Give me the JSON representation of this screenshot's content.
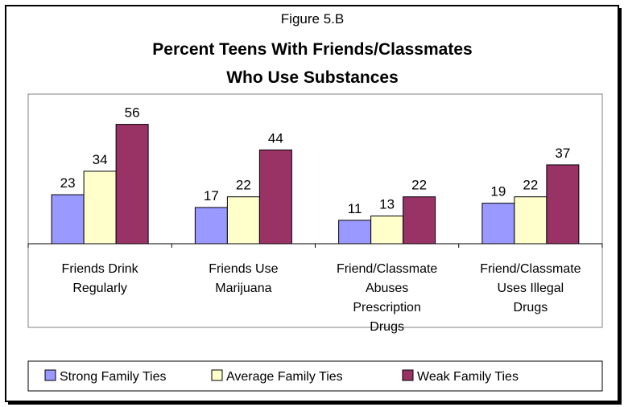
{
  "figure_label": "Figure 5.B",
  "chart_data": {
    "type": "bar",
    "title": [
      "Percent Teens With Friends/Classmates",
      "Who Use Substances"
    ],
    "categories": [
      [
        "Friends Drink",
        "Regularly"
      ],
      [
        "Friends Use",
        "Marijuana"
      ],
      [
        "Friend/Classmate",
        "Abuses",
        "Prescription",
        "Drugs"
      ],
      [
        "Friend/Classmate",
        "Uses Illegal",
        "Drugs"
      ]
    ],
    "series": [
      {
        "name": "Strong Family Ties",
        "color": "#9999ff",
        "values": [
          23,
          17,
          11,
          19
        ]
      },
      {
        "name": "Average Family Ties",
        "color": "#ffffcc",
        "values": [
          34,
          22,
          13,
          22
        ]
      },
      {
        "name": "Weak Family Ties",
        "color": "#993366",
        "values": [
          56,
          44,
          22,
          37
        ]
      }
    ],
    "ylim": [
      0,
      60
    ],
    "grid": false,
    "legend_position": "bottom"
  }
}
